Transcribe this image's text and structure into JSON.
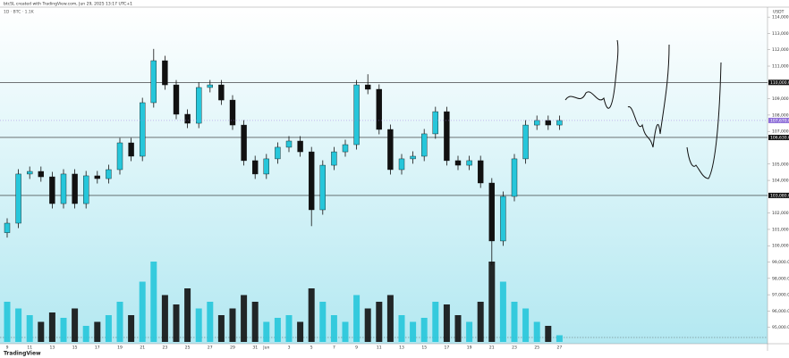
{
  "chart_data": {
    "type": "candlestick",
    "title": "btcSL created with TradingView.com, Jun 29, 2025 13:17 UTC+1",
    "subtitle": "1D · BTC · 1.1K",
    "currency": "USDT",
    "brand": "TradingView",
    "categories": [
      "9",
      null,
      "11",
      null,
      "13",
      null,
      "15",
      null,
      "17",
      null,
      "19",
      null,
      "21",
      null,
      "23",
      null,
      "25",
      null,
      "27",
      null,
      "29",
      null,
      "31",
      "Jun",
      null,
      "3",
      null,
      "5",
      null,
      "7",
      null,
      "9",
      null,
      "11",
      null,
      "13",
      null,
      "15",
      null,
      "17",
      null,
      "19",
      null,
      "21",
      null,
      "23",
      null,
      "25",
      null,
      "27"
    ],
    "open": [
      100800,
      101380,
      104390,
      104550,
      104220,
      102580,
      104390,
      102580,
      104280,
      104110,
      104660,
      106300,
      105480,
      108760,
      111330,
      109850,
      108050,
      107500,
      109690,
      109850,
      108920,
      107390,
      105210,
      104390,
      105320,
      106030,
      106410,
      105750,
      102200,
      104930,
      105750,
      106190,
      109850,
      109580,
      107120,
      104660,
      105320,
      105480,
      106850,
      108210,
      105210,
      104930,
      105210,
      103840,
      100290,
      103020,
      105320,
      107390,
      107670,
      107390
    ],
    "high": [
      101680,
      104690,
      104850,
      104850,
      104520,
      104690,
      104690,
      104580,
      104580,
      104960,
      106600,
      106600,
      109060,
      112050,
      111630,
      110150,
      108350,
      109990,
      110150,
      110150,
      109220,
      107690,
      105510,
      105620,
      106330,
      106710,
      106710,
      106050,
      105230,
      106050,
      106490,
      110150,
      110500,
      109880,
      107420,
      105620,
      105780,
      107150,
      108510,
      108510,
      105510,
      105510,
      105510,
      104140,
      103320,
      105620,
      107690,
      107970,
      107970,
      107970
    ],
    "low": [
      100500,
      101080,
      104090,
      103920,
      102280,
      102280,
      102280,
      102280,
      103810,
      103810,
      104360,
      105180,
      105180,
      108460,
      109550,
      107750,
      107200,
      107200,
      109390,
      108620,
      107090,
      104910,
      104090,
      104090,
      105020,
      105730,
      105450,
      101200,
      101900,
      104630,
      105450,
      105890,
      109280,
      106820,
      104360,
      104360,
      105020,
      105180,
      106550,
      104910,
      104630,
      104630,
      103540,
      98800,
      99990,
      102720,
      105020,
      107090,
      107090,
      107090
    ],
    "close": [
      101380,
      104390,
      104550,
      104220,
      102580,
      104390,
      102580,
      104280,
      104110,
      104660,
      106300,
      105480,
      108760,
      111330,
      109850,
      108050,
      107500,
      109690,
      109850,
      108920,
      107390,
      105210,
      104390,
      105320,
      106030,
      106410,
      105750,
      102200,
      104930,
      105750,
      106190,
      109850,
      109580,
      107120,
      104660,
      105320,
      105480,
      106850,
      108210,
      105210,
      104930,
      105210,
      103840,
      100290,
      103020,
      105320,
      107390,
      107670,
      107390,
      107670
    ],
    "volume": [
      30,
      25,
      20,
      15,
      22,
      18,
      25,
      12,
      15,
      20,
      30,
      20,
      45,
      60,
      35,
      28,
      40,
      25,
      30,
      20,
      25,
      35,
      30,
      15,
      18,
      20,
      15,
      40,
      30,
      20,
      15,
      35,
      25,
      30,
      35,
      20,
      15,
      18,
      30,
      28,
      20,
      15,
      30,
      60,
      45,
      30,
      25,
      15,
      12,
      5
    ],
    "up_color": "#26c6da",
    "down_color": "#111111",
    "ylim": [
      94000,
      114500
    ],
    "yticks": [
      {
        "value": 95000,
        "label": "95,000.0"
      },
      {
        "value": 96000,
        "label": "96,000.0"
      },
      {
        "value": 97000,
        "label": "97,000.0"
      },
      {
        "value": 98000,
        "label": "98,000.0"
      },
      {
        "value": 99000,
        "label": "99,000.0"
      },
      {
        "value": 100000,
        "label": "100,000.0"
      },
      {
        "value": 101000,
        "label": "101,000.0"
      },
      {
        "value": 102000,
        "label": "102,000.0"
      },
      {
        "value": 104000,
        "label": "104,000.0"
      },
      {
        "value": 105000,
        "label": "105,000.0"
      },
      {
        "value": 107000,
        "label": "107,000.0"
      },
      {
        "value": 108000,
        "label": "108,000.0"
      },
      {
        "value": 109000,
        "label": "109,000.0"
      },
      {
        "value": 111000,
        "label": "111,000.0"
      },
      {
        "value": 112000,
        "label": "112,000.0"
      },
      {
        "value": 113000,
        "label": "113,000.0"
      },
      {
        "value": 114000,
        "label": "114,000.0"
      }
    ],
    "levels": [
      {
        "value": 110000,
        "label": "110,000.0"
      },
      {
        "value": 106630,
        "label": "106,630.0"
      },
      {
        "value": 103080,
        "label": "103,080.0"
      }
    ],
    "last_price_label": "107,670.0"
  }
}
